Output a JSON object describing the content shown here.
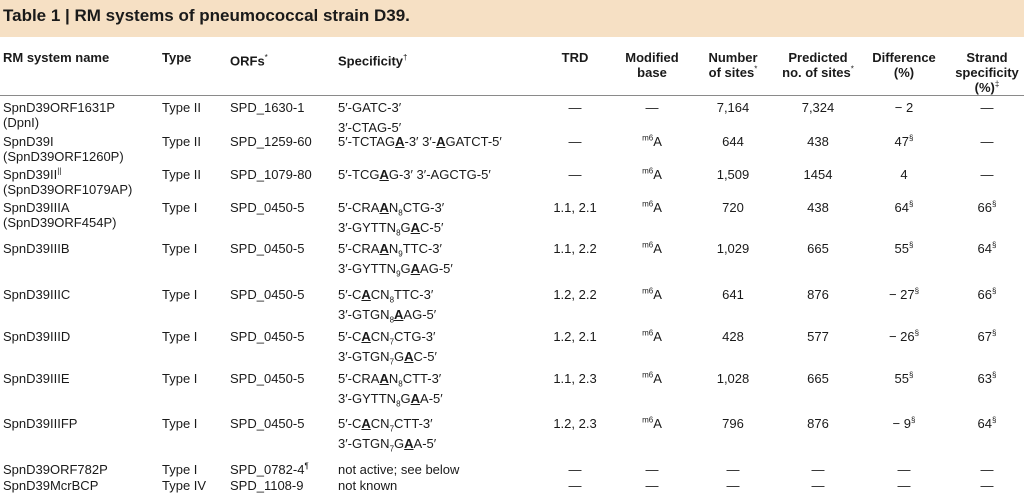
{
  "title": "Table 1 | RM systems of pneumococcal strain D39.",
  "headers": {
    "name": "RM system name",
    "type": "Type",
    "orfs": "ORFs",
    "orfs_mark": "*",
    "spec": "Specificity",
    "spec_mark": "†",
    "trd": "TRD",
    "mod_1": "Modified",
    "mod_2": "base",
    "num_1": "Number",
    "num_2": "of sites",
    "num_mark": "*",
    "pred_1": "Predicted",
    "pred_2": "no. of sites",
    "pred_mark": "*",
    "diff_1": "Difference",
    "diff_2": "(%)",
    "strand_1": "Strand",
    "strand_2": "specificity",
    "strand_3": "(%)",
    "strand_mark": "‡"
  },
  "rows": [
    {
      "name": "SpnD39ORF1631P",
      "name2": "(DpnI)",
      "type": "Type II",
      "orfs": "SPD_1630-1",
      "spec": [
        [
          "5′-GATC-3′"
        ]
      ],
      "spec2": [
        [
          "3′-CTAG-5′"
        ]
      ],
      "trd": "—",
      "mod": "—",
      "mod_sup": "",
      "num": "7,164",
      "pred": "7,324",
      "diff": "− 2",
      "diff_sup": "",
      "strand": "—",
      "strand_sup": ""
    },
    {
      "name": "SpnD39I",
      "name2": "(SpnD39ORF1260P)",
      "type": "Type II",
      "orfs": "SPD_1259-60",
      "spec": [
        [
          "5′-TCTAG"
        ],
        [
          "A",
          "b"
        ],
        [
          "-3′ 3′-"
        ],
        [
          "A",
          "b"
        ],
        [
          "GATCT-5′"
        ]
      ],
      "spec2": [],
      "trd": "—",
      "mod": "A",
      "mod_sup": "m6",
      "num": "644",
      "pred": "438",
      "diff": "47",
      "diff_sup": "§",
      "strand": "—",
      "strand_sup": ""
    },
    {
      "name": "SpnD39II",
      "name_sup": "||",
      "name2": "(SpnD39ORF1079AP)",
      "type": "Type II",
      "orfs": "SPD_1079-80",
      "spec": [
        [
          "5′-TCG"
        ],
        [
          "A",
          "b"
        ],
        [
          "G-3′ 3′-AGCTG-5′"
        ]
      ],
      "spec2": [],
      "trd": "—",
      "mod": "A",
      "mod_sup": "m6",
      "num": "1,509",
      "pred": "1454",
      "diff": "4",
      "diff_sup": "",
      "strand": "—",
      "strand_sup": ""
    },
    {
      "name": "SpnD39IIIA",
      "name2": "(SpnD39ORF454P)",
      "type": "Type I",
      "orfs": "SPD_0450-5",
      "spec": [
        [
          "5′-CRA"
        ],
        [
          "A",
          "b"
        ],
        [
          "N"
        ],
        [
          "8",
          "s"
        ],
        [
          "CTG-3′"
        ]
      ],
      "spec2": [
        [
          "3′-GYTTN"
        ],
        [
          "8",
          "s"
        ],
        [
          "G"
        ],
        [
          "A",
          "b"
        ],
        [
          "C-5′"
        ]
      ],
      "trd": "1.1, 2.1",
      "mod": "A",
      "mod_sup": "m6",
      "num": "720",
      "pred": "438",
      "diff": "64",
      "diff_sup": "§",
      "strand": "66",
      "strand_sup": "§"
    },
    {
      "name": "SpnD39IIIB",
      "name2": "",
      "type": "Type I",
      "orfs": "SPD_0450-5",
      "spec": [
        [
          "5′-CRA"
        ],
        [
          "A",
          "b"
        ],
        [
          "N"
        ],
        [
          "9",
          "s"
        ],
        [
          "TTC-3′"
        ]
      ],
      "spec2": [
        [
          "3′-GYTTN"
        ],
        [
          "9",
          "s"
        ],
        [
          "G"
        ],
        [
          "A",
          "b"
        ],
        [
          "AG-5′"
        ]
      ],
      "trd": "1.1, 2.2",
      "mod": "A",
      "mod_sup": "m6",
      "num": "1,029",
      "pred": "665",
      "diff": "55",
      "diff_sup": "§",
      "strand": "64",
      "strand_sup": "§"
    },
    {
      "name": "SpnD39IIIC",
      "name2": "",
      "type": "Type I",
      "orfs": "SPD_0450-5",
      "spec": [
        [
          "5′-C"
        ],
        [
          "A",
          "b"
        ],
        [
          "CN"
        ],
        [
          "8",
          "s"
        ],
        [
          "TTC-3′"
        ]
      ],
      "spec2": [
        [
          "3′-GTGN"
        ],
        [
          "8",
          "s"
        ],
        [
          "A",
          "b"
        ],
        [
          "AG-5′"
        ]
      ],
      "trd": "1.2, 2.2",
      "mod": "A",
      "mod_sup": "m6",
      "num": "641",
      "pred": "876",
      "diff": "− 27",
      "diff_sup": "§",
      "strand": "66",
      "strand_sup": "§"
    },
    {
      "name": "SpnD39IIID",
      "name2": "",
      "type": "Type I",
      "orfs": "SPD_0450-5",
      "spec": [
        [
          "5′-C"
        ],
        [
          "A",
          "b"
        ],
        [
          "CN"
        ],
        [
          "7",
          "s"
        ],
        [
          "CTG-3′"
        ]
      ],
      "spec2": [
        [
          "3′-GTGN"
        ],
        [
          "7",
          "s"
        ],
        [
          "G"
        ],
        [
          "A",
          "b"
        ],
        [
          "C-5′"
        ]
      ],
      "trd": "1.2, 2.1",
      "mod": "A",
      "mod_sup": "m6",
      "num": "428",
      "pred": "577",
      "diff": "− 26",
      "diff_sup": "§",
      "strand": "67",
      "strand_sup": "§"
    },
    {
      "name": "SpnD39IIIE",
      "name2": "",
      "type": "Type I",
      "orfs": "SPD_0450-5",
      "spec": [
        [
          "5′-CRA"
        ],
        [
          "A",
          "b"
        ],
        [
          "N"
        ],
        [
          "8",
          "s"
        ],
        [
          "CTT-3′"
        ]
      ],
      "spec2": [
        [
          "3′-GYTTN"
        ],
        [
          "8",
          "s"
        ],
        [
          "G"
        ],
        [
          "A",
          "b"
        ],
        [
          "A-5′"
        ]
      ],
      "trd": "1.1, 2.3",
      "mod": "A",
      "mod_sup": "m6",
      "num": "1,028",
      "pred": "665",
      "diff": "55",
      "diff_sup": "§",
      "strand": "63",
      "strand_sup": "§"
    },
    {
      "name": "SpnD39IIIFP",
      "name2": "",
      "type": "Type I",
      "orfs": "SPD_0450-5",
      "spec": [
        [
          "5′-C"
        ],
        [
          "A",
          "b"
        ],
        [
          "CN"
        ],
        [
          "7",
          "s"
        ],
        [
          "CTT-3′"
        ]
      ],
      "spec2": [
        [
          "3′-GTGN"
        ],
        [
          "7",
          "s"
        ],
        [
          "G"
        ],
        [
          "A",
          "b"
        ],
        [
          "A-5′"
        ]
      ],
      "trd": "1.2, 2.3",
      "mod": "A",
      "mod_sup": "m6",
      "num": "796",
      "pred": "876",
      "diff": "− 9",
      "diff_sup": "§",
      "strand": "64",
      "strand_sup": "§"
    },
    {
      "name": "SpnD39ORF782P",
      "name2": "",
      "type": "Type I",
      "orfs": "SPD_0782-4",
      "orfs_sup": "¶",
      "spec": [
        [
          "not active; see below"
        ]
      ],
      "spec2": [],
      "trd": "—",
      "mod": "—",
      "mod_sup": "",
      "num": "—",
      "pred": "—",
      "diff": "—",
      "diff_sup": "",
      "strand": "—",
      "strand_sup": ""
    },
    {
      "name": "SpnD39McrBCP",
      "name2": "",
      "type": "Type IV",
      "orfs": "SPD_1108-9",
      "spec": [
        [
          "not known"
        ]
      ],
      "spec2": [],
      "trd": "—",
      "mod": "—",
      "mod_sup": "",
      "num": "—",
      "pred": "—",
      "diff": "—",
      "diff_sup": "",
      "strand": "—",
      "strand_sup": ""
    }
  ]
}
